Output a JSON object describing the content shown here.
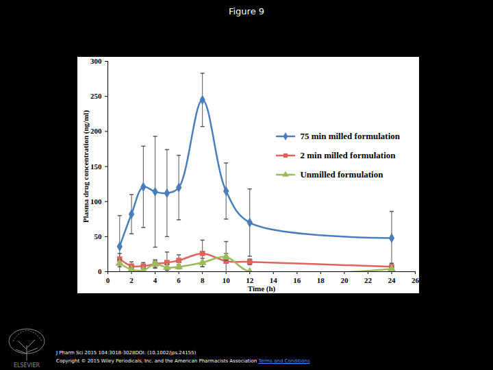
{
  "page": {
    "heading": "Figure 9",
    "citation": "J Pharm Sci 2015 104:3018-3028DOI: (10.1002/jps.24155)",
    "copyright": "Copyright © 2015 Wiley Periodicals, Inc. and the American Pharmacists Association",
    "link_text": "Terms and Conditions",
    "logo_text": "ELSEVIER"
  },
  "chart_data": {
    "type": "line",
    "x_label": "Time (h)",
    "y_label": "Plasma drug concentration (ng/ml)",
    "x": [
      1,
      2,
      3,
      4,
      5,
      6,
      8,
      10,
      12,
      24
    ],
    "series": [
      {
        "name": "75 min milled formulation",
        "color": "#4a7ebb",
        "marker": "diamond",
        "values": [
          36,
          82,
          121,
          114,
          112,
          120,
          245,
          115,
          70,
          48
        ],
        "errors": [
          44,
          28,
          58,
          79,
          62,
          46,
          38,
          40,
          48,
          38
        ]
      },
      {
        "name": "2 min milled formulation",
        "color": "#e0625c",
        "marker": "square",
        "values": [
          18,
          8,
          8,
          11,
          13,
          16,
          26,
          15,
          14,
          7
        ],
        "errors": [
          8,
          6,
          5,
          6,
          15,
          8,
          19,
          28,
          4,
          5
        ]
      },
      {
        "name": "Unmilled formulation",
        "color": "#9bbb59",
        "marker": "triangle",
        "values": [
          12,
          3,
          2,
          11,
          6,
          7,
          13,
          21,
          0,
          4
        ],
        "errors": [
          5,
          3,
          2,
          5,
          4,
          3,
          6,
          5,
          0,
          3
        ]
      }
    ],
    "xlim": [
      0,
      26
    ],
    "xticks": [
      0,
      2,
      4,
      6,
      8,
      10,
      12,
      14,
      16,
      18,
      20,
      22,
      24,
      26
    ],
    "ylim": [
      0,
      300
    ],
    "yticks": [
      0,
      50,
      100,
      150,
      200,
      250,
      300
    ],
    "grid": false,
    "legend": "upper right"
  }
}
